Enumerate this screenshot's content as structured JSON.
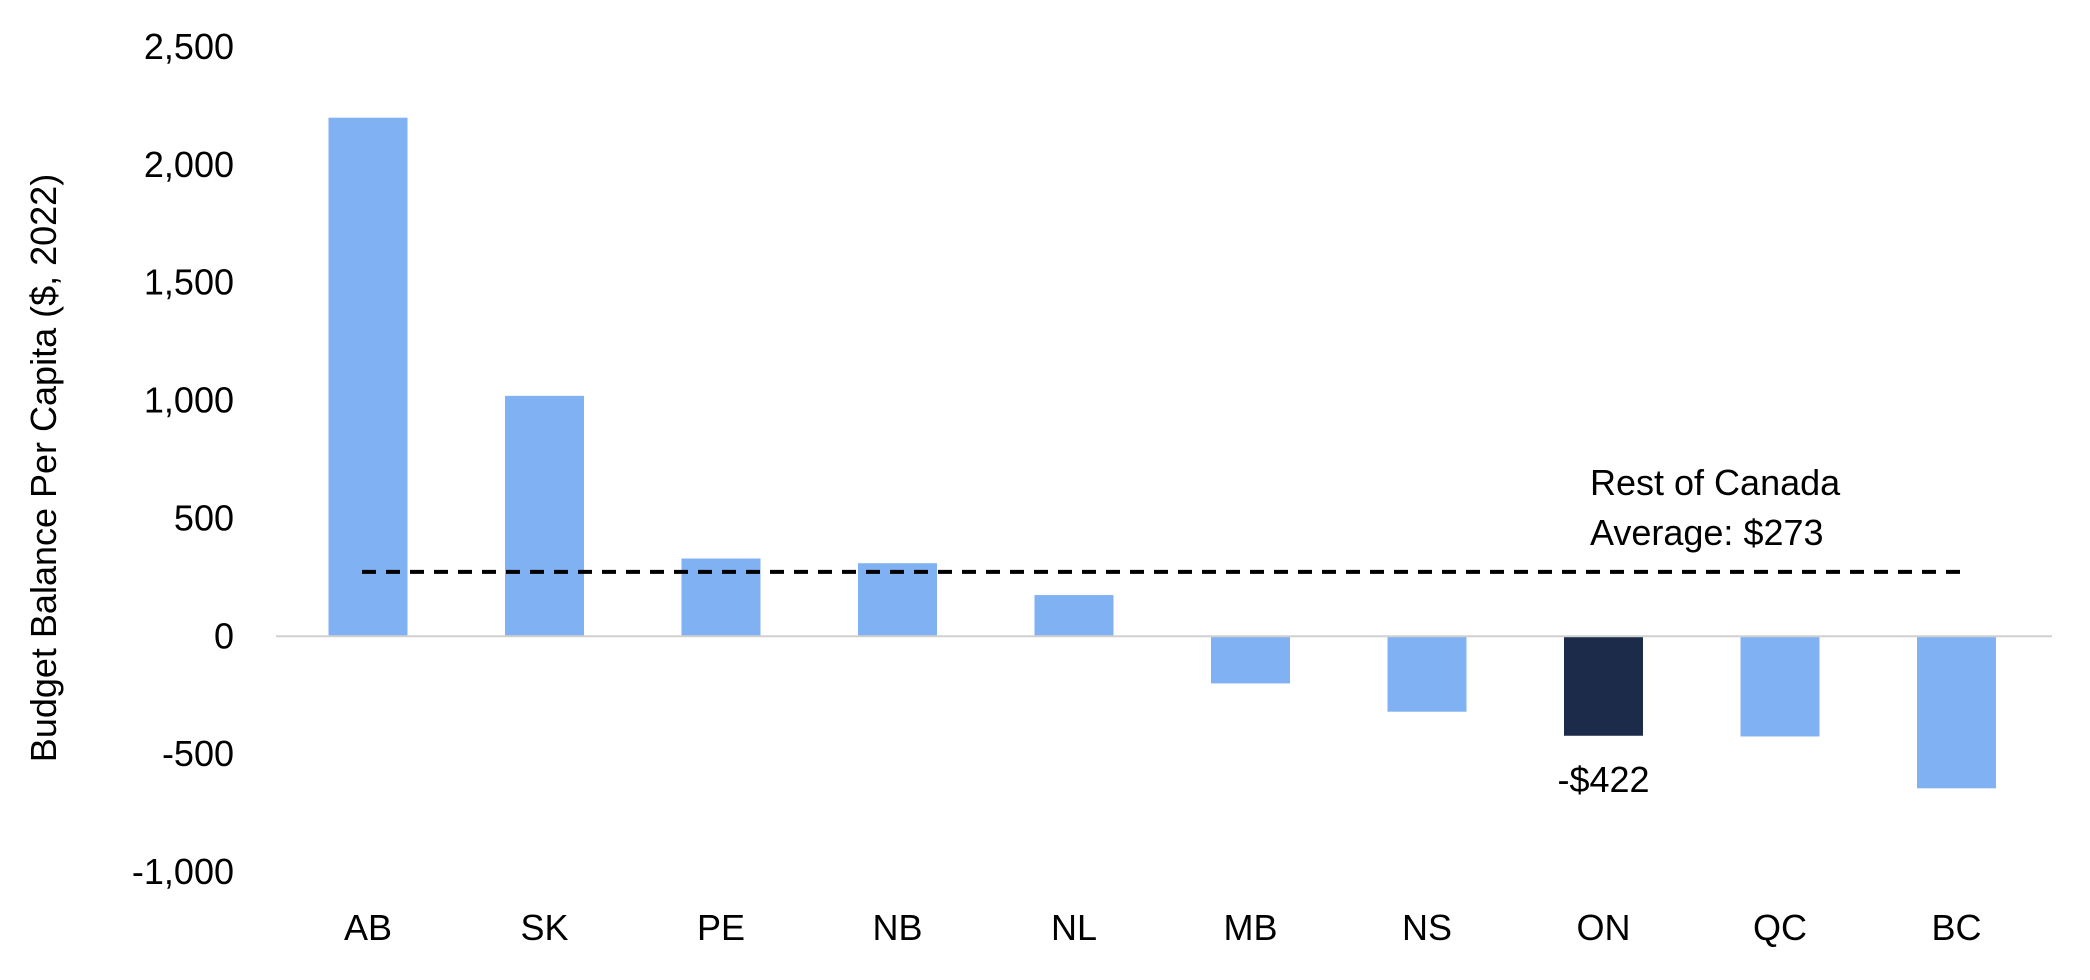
{
  "chart_data": {
    "type": "bar",
    "title": "",
    "xlabel": "",
    "ylabel": "Budget Balance Per Capita ($, 2022)",
    "categories": [
      "AB",
      "SK",
      "PE",
      "NB",
      "NL",
      "MB",
      "NS",
      "ON",
      "QC",
      "BC"
    ],
    "values": [
      2200,
      1020,
      330,
      310,
      175,
      -200,
      -320,
      -422,
      -425,
      -645
    ],
    "ylim": [
      -1000,
      2500
    ],
    "yticks": [
      -1000,
      -500,
      0,
      500,
      1000,
      1500,
      2000,
      2500
    ],
    "ytick_labels": [
      "-1,000",
      "-500",
      "0",
      "500",
      "1,000",
      "1,500",
      "2,000",
      "2,500"
    ],
    "grid": false,
    "legend": "none",
    "highlight_category": "ON",
    "data_labels": [
      {
        "category": "ON",
        "text": "-$422"
      }
    ],
    "reference_line": {
      "value": 273,
      "style": "dashed",
      "label_lines": [
        "Rest of Canada",
        "Average: $273"
      ]
    },
    "colors": {
      "bar": "#7fb1f3",
      "highlight": "#1d2b4a",
      "reference_line": "#000000",
      "axis": "#d0d0d0"
    }
  }
}
